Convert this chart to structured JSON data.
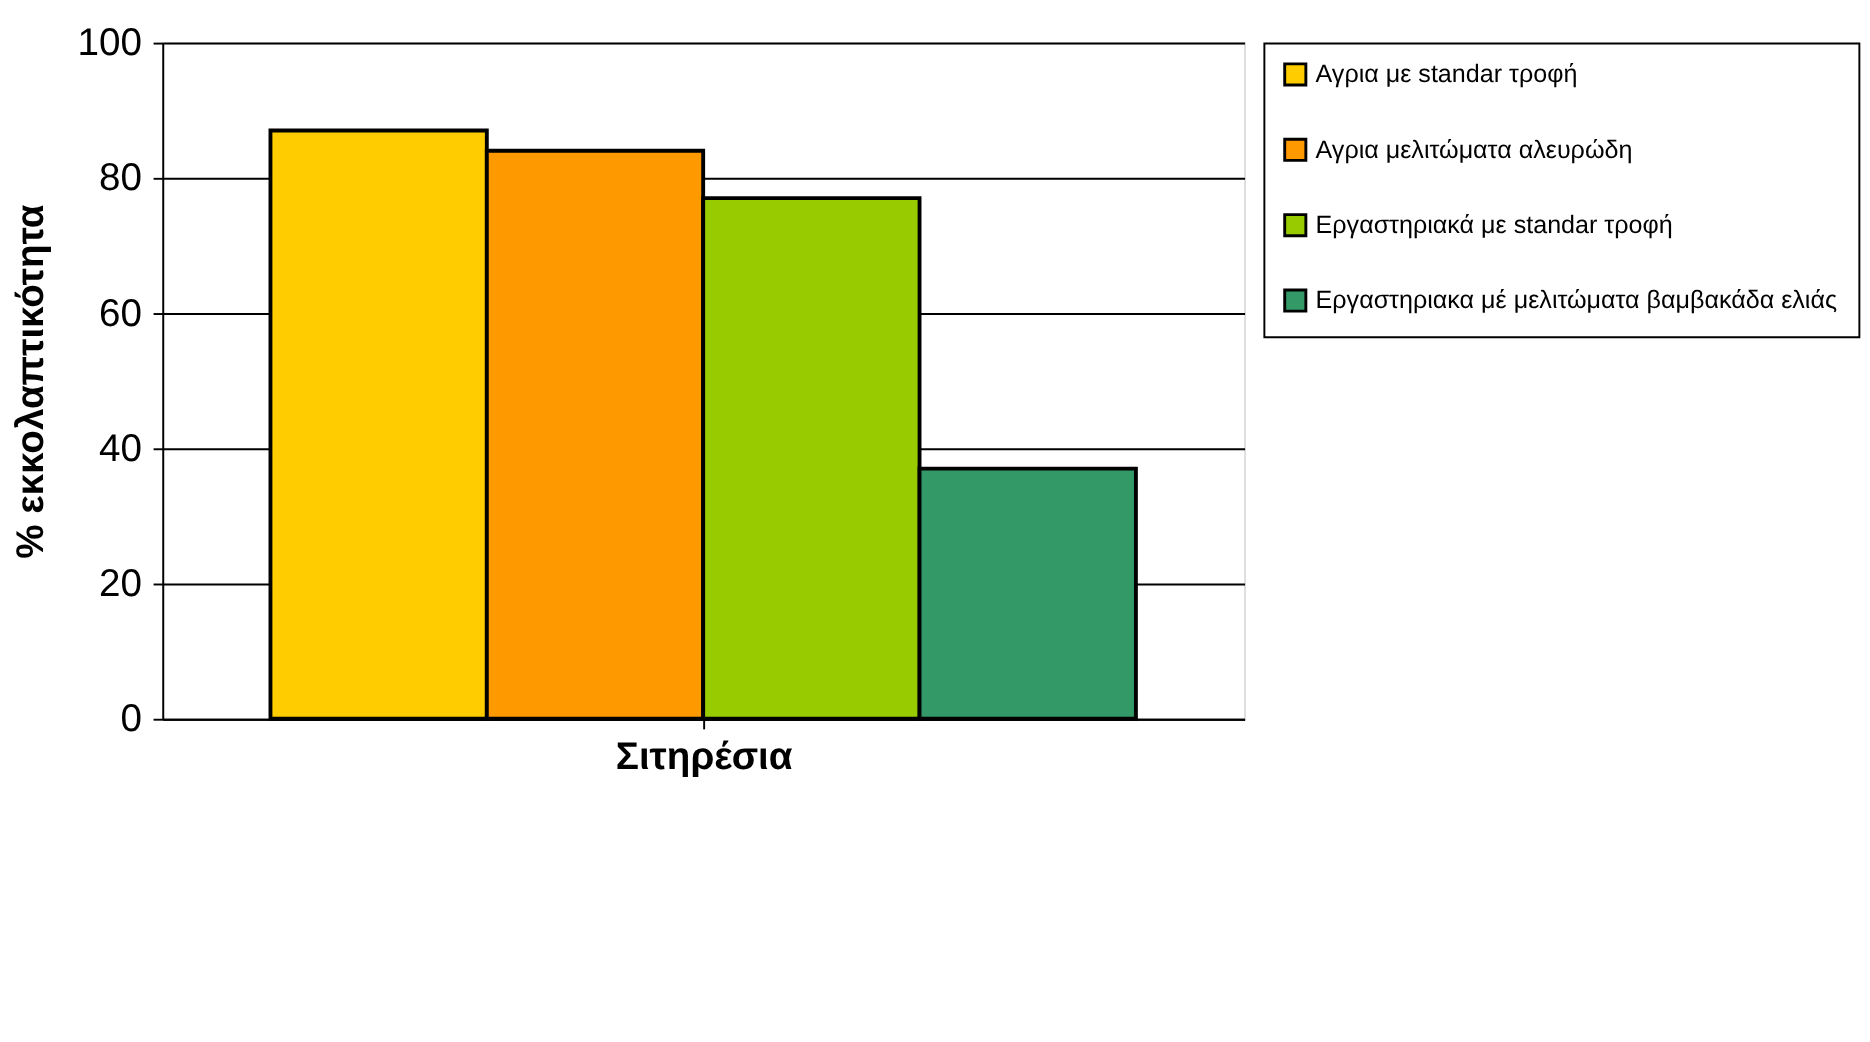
{
  "chart_data": {
    "type": "bar",
    "xlabel": "Σιτηρέσια",
    "ylabel": "% εκκολαπτικότητα",
    "categories": [
      null
    ],
    "series": [
      {
        "name": "Αγρια με standar τροφή",
        "color": "#ffcc00",
        "values": [
          87
        ]
      },
      {
        "name": "Αγρια μελιτώματα αλευρώδη",
        "color": "#ff9900",
        "values": [
          84
        ]
      },
      {
        "name": "Εργαστηριακά με standar τροφή",
        "color": "#99cc00",
        "values": [
          77
        ]
      },
      {
        "name": "Εργαστηριακα μέ μελιτώματα βαμβακάδα ελιάς",
        "color": "#339966",
        "values": [
          37
        ]
      }
    ],
    "ylim": [
      0,
      100
    ],
    "yticks": [
      0,
      20,
      40,
      60,
      80,
      100
    ],
    "grid": "y",
    "legend": "top right"
  }
}
